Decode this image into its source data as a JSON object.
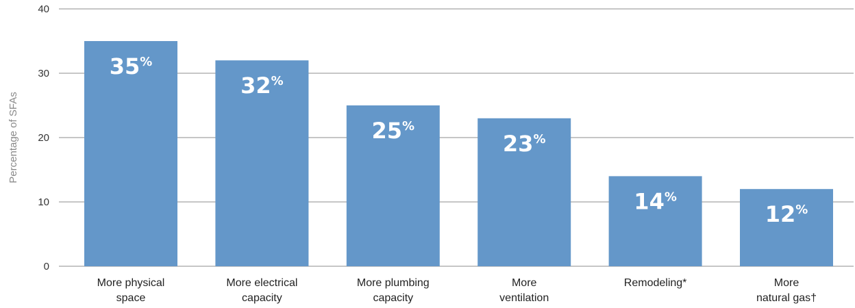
{
  "chart_data": {
    "type": "bar",
    "ylabel": "Percentage of SFAs",
    "ylim": [
      0,
      40
    ],
    "yticks": [
      0,
      10,
      20,
      30,
      40
    ],
    "grid": true,
    "bar_color": "#6497c9",
    "categories": [
      [
        "More physical",
        "space"
      ],
      [
        "More electrical",
        "capacity"
      ],
      [
        "More plumbing",
        "capacity"
      ],
      [
        "More",
        "ventilation"
      ],
      [
        "Remodeling*"
      ],
      [
        "More",
        "natural gas†"
      ]
    ],
    "values": [
      35,
      32,
      25,
      23,
      14,
      12
    ],
    "value_labels": [
      "35",
      "32",
      "25",
      "23",
      "14",
      "12"
    ],
    "value_suffix": "%"
  }
}
